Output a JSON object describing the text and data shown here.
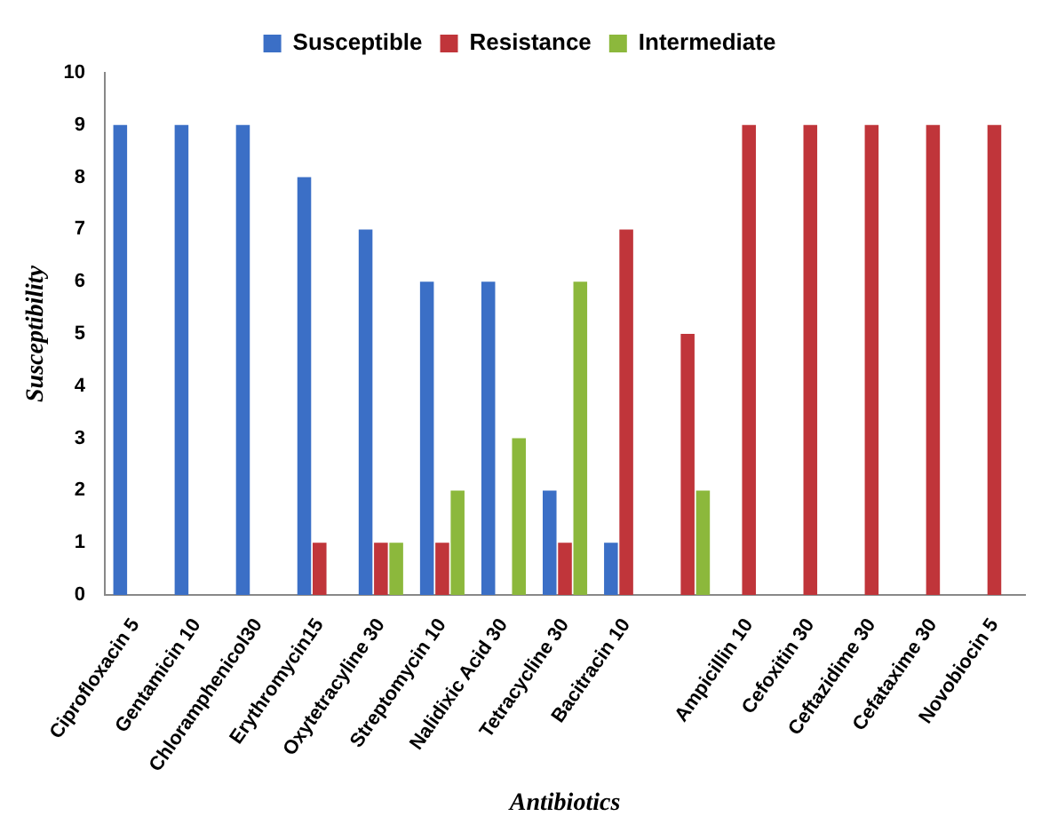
{
  "chart_data": {
    "type": "bar",
    "xlabel": "Antibiotics",
    "ylabel": "Susceptibility",
    "categories": [
      "Ciprofloxacin 5",
      "Gentamicin 10",
      "Chloramphenicol30",
      "Erythromycin15",
      "Oxytetracyline 30",
      "Streptomycin 10",
      "Nalidixic Acid 30",
      "Tetracycline 30",
      "Bacitracin 10",
      null,
      "Ampicillin 10",
      "Cefoxitin 30",
      "Ceftazidime 30",
      "Cefataxime 30",
      "Novobiocin 5"
    ],
    "series": [
      {
        "name": "Susceptible",
        "color": "#3b6fc6",
        "values": [
          9,
          9,
          9,
          8,
          7,
          6,
          6,
          2,
          1,
          0,
          0,
          0,
          0,
          0,
          0
        ]
      },
      {
        "name": "Resistance",
        "color": "#c0353a",
        "values": [
          0,
          0,
          0,
          1,
          1,
          1,
          0,
          1,
          7,
          5,
          9,
          9,
          9,
          9,
          9
        ]
      },
      {
        "name": "Intermediate",
        "color": "#8cb83c",
        "values": [
          0,
          0,
          0,
          0,
          1,
          2,
          3,
          6,
          0,
          2,
          0,
          0,
          0,
          0,
          0
        ]
      }
    ],
    "ylim": [
      0,
      10
    ],
    "yticks": [
      0,
      1,
      2,
      3,
      4,
      5,
      6,
      7,
      8,
      9,
      10
    ],
    "grid": false,
    "legend": "top"
  }
}
